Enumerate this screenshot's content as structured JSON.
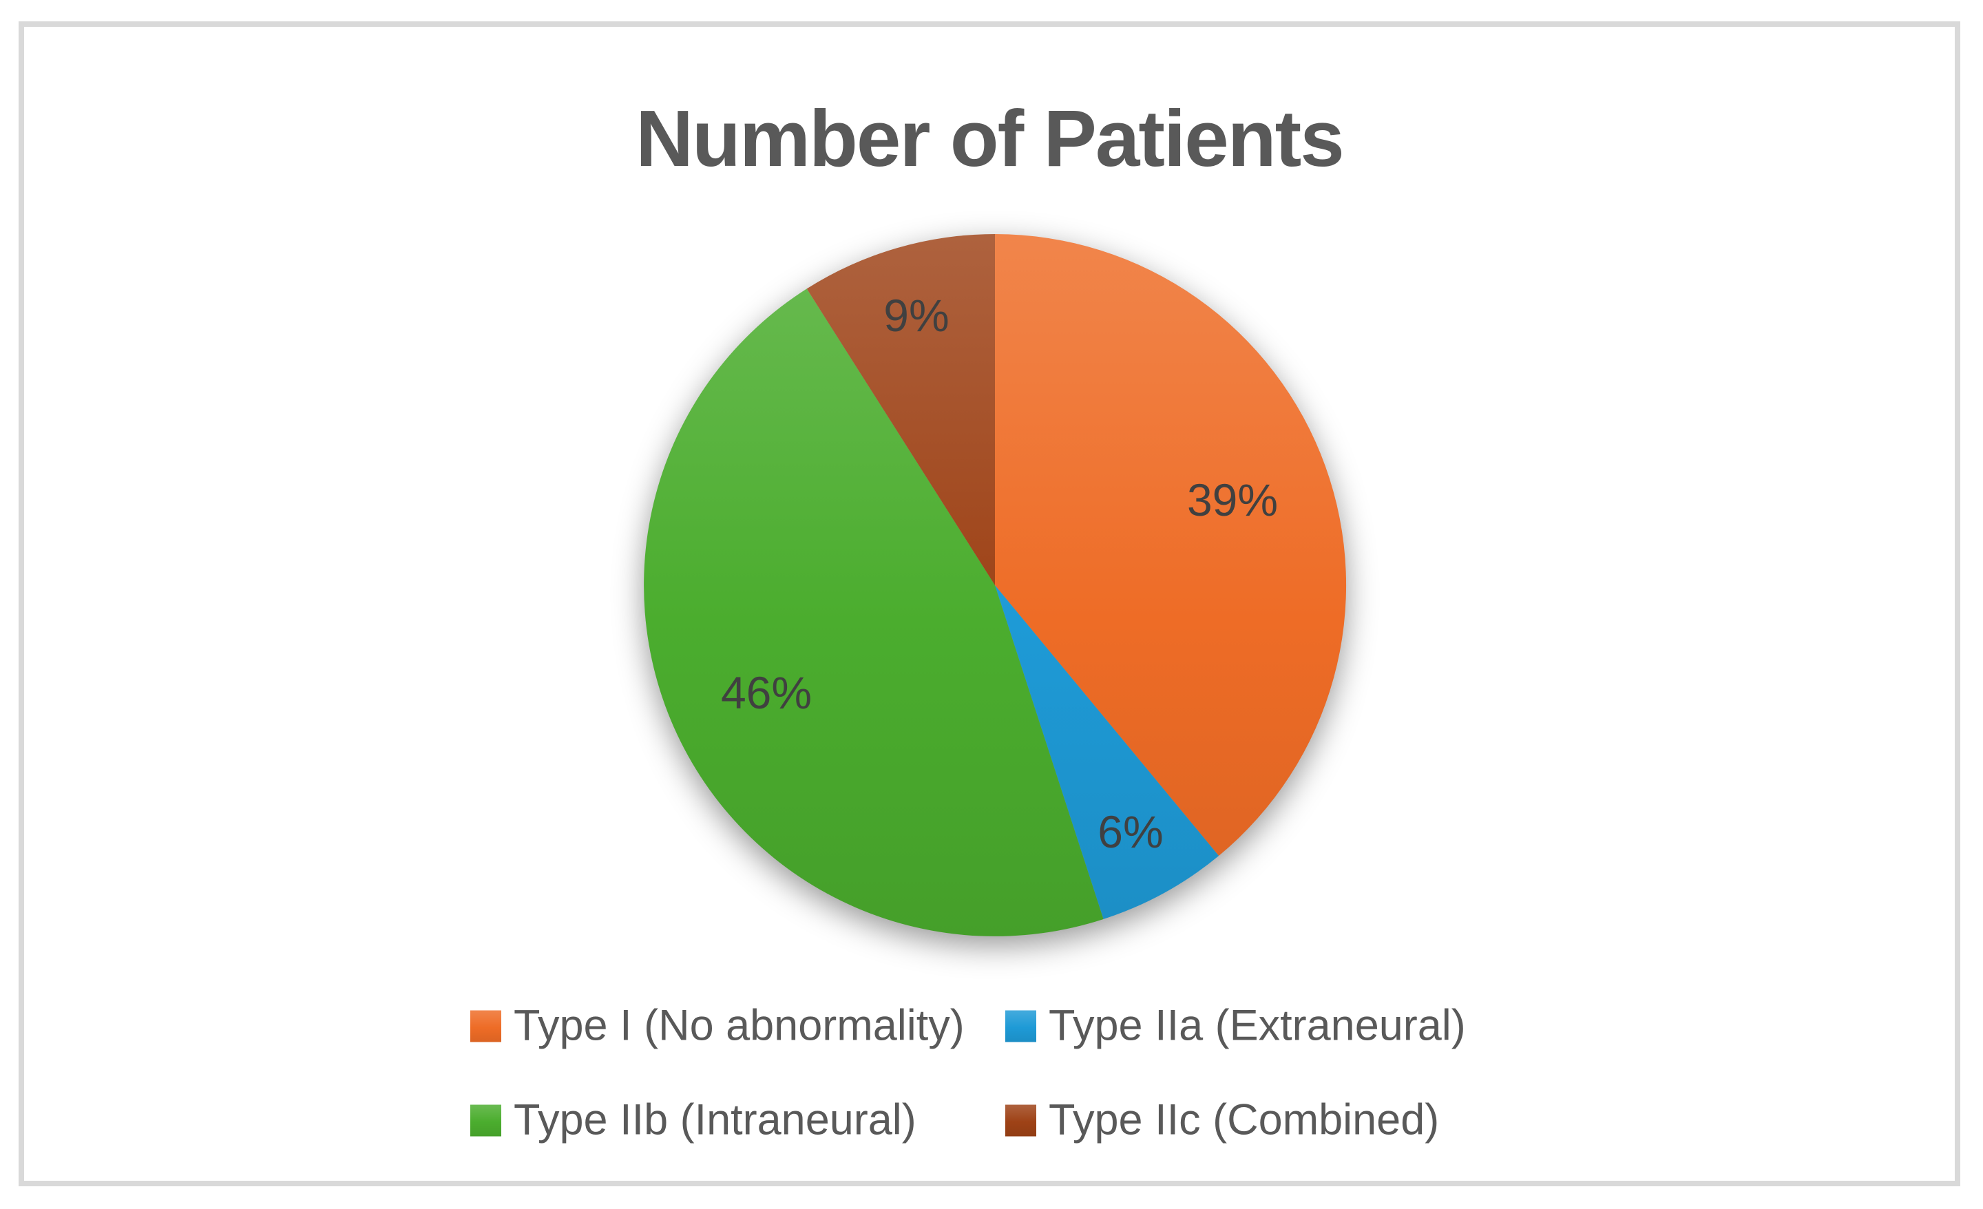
{
  "title": "Number of Patients",
  "colors": {
    "frame_border": "#D9D9D9",
    "background": "#FFFFFF",
    "title_text": "#595959",
    "legend_text": "#595959",
    "data_label_text": "#404040"
  },
  "chart_data": {
    "type": "pie",
    "title": "Number of Patients",
    "start_angle_deg": 0,
    "direction": "clockwise",
    "data_labels": "percent",
    "legend_position": "bottom",
    "slices": [
      {
        "label": "Type I (No abnormality)",
        "value": 39,
        "pct_label": "39%",
        "color": "#EE6C26"
      },
      {
        "label": "Type IIa (Extraneural)",
        "value": 6,
        "pct_label": "6%",
        "color": "#1E9AD6"
      },
      {
        "label": "Type IIb (Intraneural)",
        "value": 46,
        "pct_label": "46%",
        "color": "#4BAD2E"
      },
      {
        "label": "Type IIc (Combined)",
        "value": 9,
        "pct_label": "9%",
        "color": "#9E4216"
      }
    ]
  }
}
